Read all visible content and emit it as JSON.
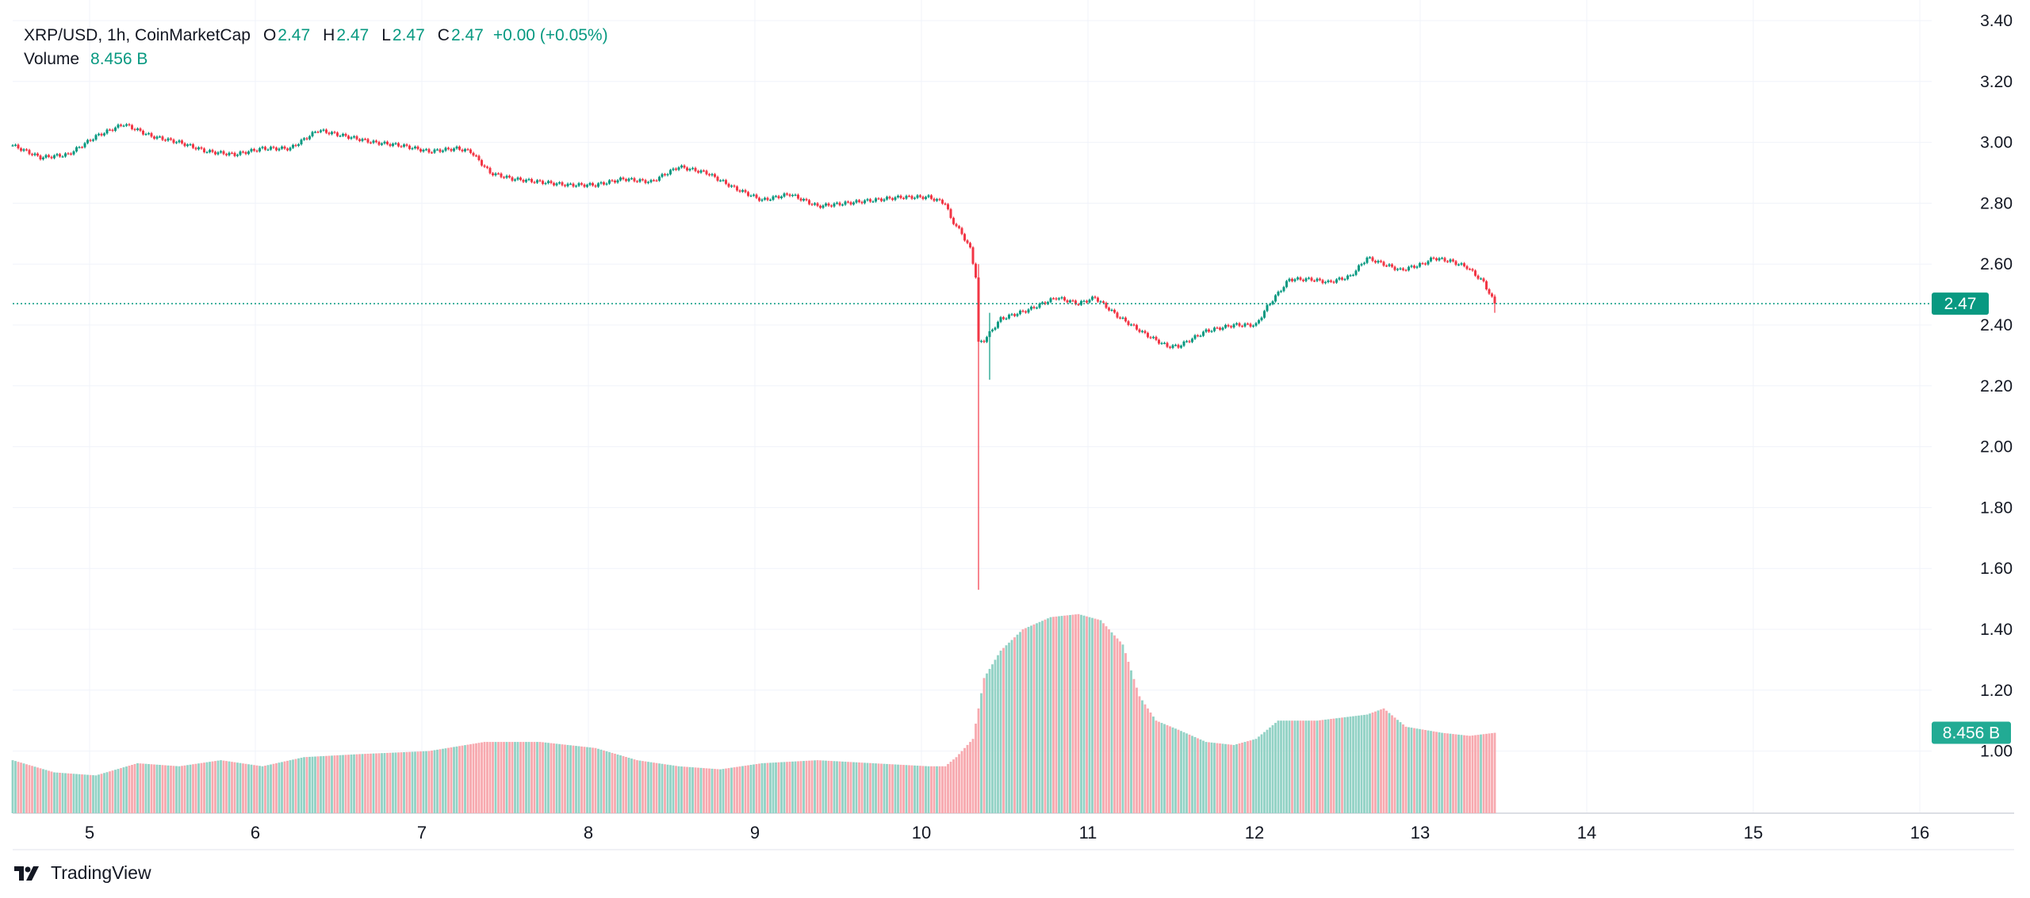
{
  "header": {
    "symbol": "XRP/USD, 1h, CoinMarketCap",
    "open_label": "O",
    "open": "2.47",
    "high_label": "H",
    "high": "2.47",
    "low_label": "L",
    "low": "2.47",
    "close_label": "C",
    "close": "2.47",
    "change": "+0.00 (+0.05%)",
    "volume_label": "Volume",
    "volume_value": "8.456 B"
  },
  "brand": {
    "name": "TradingView"
  },
  "colors": {
    "up": "#089981",
    "down": "#F23645",
    "up_volume": "#92D2C5",
    "down_volume": "#F7A9AF",
    "grid": "#F0F3FA"
  },
  "chart_data": {
    "type": "candlestick",
    "title": "XRP/USD, 1h, CoinMarketCap",
    "price_axis": {
      "ticks": [
        "3.40",
        "3.20",
        "3.00",
        "2.80",
        "2.60",
        "2.40",
        "2.20",
        "2.00",
        "1.80",
        "1.60",
        "1.40",
        "1.20",
        "1.00"
      ],
      "range": [
        0.8,
        3.42
      ]
    },
    "time_axis": {
      "ticks": [
        "5",
        "6",
        "7",
        "8",
        "9",
        "10",
        "11",
        "12",
        "13",
        "14",
        "15",
        "16"
      ]
    },
    "last_price_label": "2.47",
    "last_price": 2.47,
    "volume_label": "8.456 B",
    "price_keypoints": [
      [
        0,
        2.99
      ],
      [
        10,
        2.95
      ],
      [
        20,
        2.96
      ],
      [
        30,
        3.02
      ],
      [
        40,
        3.06
      ],
      [
        50,
        3.02
      ],
      [
        60,
        3.0
      ],
      [
        70,
        2.97
      ],
      [
        80,
        2.96
      ],
      [
        90,
        2.98
      ],
      [
        100,
        2.98
      ],
      [
        110,
        3.04
      ],
      [
        120,
        3.02
      ],
      [
        130,
        3.0
      ],
      [
        140,
        2.99
      ],
      [
        150,
        2.97
      ],
      [
        160,
        2.98
      ],
      [
        165,
        2.97
      ],
      [
        172,
        2.9
      ],
      [
        180,
        2.88
      ],
      [
        190,
        2.87
      ],
      [
        200,
        2.86
      ],
      [
        210,
        2.86
      ],
      [
        220,
        2.88
      ],
      [
        230,
        2.87
      ],
      [
        240,
        2.92
      ],
      [
        250,
        2.9
      ],
      [
        260,
        2.85
      ],
      [
        270,
        2.81
      ],
      [
        280,
        2.83
      ],
      [
        290,
        2.79
      ],
      [
        300,
        2.8
      ],
      [
        310,
        2.81
      ],
      [
        320,
        2.82
      ],
      [
        330,
        2.82
      ],
      [
        336,
        2.8
      ],
      [
        338,
        2.75
      ],
      [
        342,
        2.7
      ],
      [
        345,
        2.65
      ],
      [
        347,
        2.56
      ],
      [
        348,
        2.34
      ],
      [
        350,
        2.35
      ],
      [
        356,
        2.42
      ],
      [
        366,
        2.45
      ],
      [
        376,
        2.49
      ],
      [
        384,
        2.47
      ],
      [
        390,
        2.49
      ],
      [
        398,
        2.43
      ],
      [
        408,
        2.37
      ],
      [
        416,
        2.33
      ],
      [
        420,
        2.33
      ],
      [
        430,
        2.38
      ],
      [
        440,
        2.4
      ],
      [
        448,
        2.4
      ],
      [
        452,
        2.46
      ],
      [
        460,
        2.55
      ],
      [
        468,
        2.55
      ],
      [
        474,
        2.54
      ],
      [
        482,
        2.56
      ],
      [
        488,
        2.62
      ],
      [
        494,
        2.6
      ],
      [
        500,
        2.58
      ],
      [
        508,
        2.6
      ],
      [
        512,
        2.62
      ],
      [
        518,
        2.61
      ],
      [
        524,
        2.59
      ],
      [
        530,
        2.54
      ],
      [
        534,
        2.47
      ]
    ],
    "volume_keypoints": [
      [
        0,
        0.97
      ],
      [
        15,
        0.93
      ],
      [
        30,
        0.92
      ],
      [
        45,
        0.96
      ],
      [
        60,
        0.95
      ],
      [
        75,
        0.97
      ],
      [
        90,
        0.95
      ],
      [
        105,
        0.98
      ],
      [
        125,
        0.99
      ],
      [
        150,
        1.0
      ],
      [
        170,
        1.03
      ],
      [
        190,
        1.03
      ],
      [
        210,
        1.01
      ],
      [
        225,
        0.97
      ],
      [
        240,
        0.95
      ],
      [
        255,
        0.94
      ],
      [
        270,
        0.96
      ],
      [
        290,
        0.97
      ],
      [
        310,
        0.96
      ],
      [
        330,
        0.95
      ],
      [
        336,
        0.95
      ],
      [
        340,
        0.98
      ],
      [
        346,
        1.04
      ],
      [
        350,
        1.24
      ],
      [
        356,
        1.33
      ],
      [
        364,
        1.4
      ],
      [
        374,
        1.44
      ],
      [
        384,
        1.45
      ],
      [
        392,
        1.43
      ],
      [
        400,
        1.35
      ],
      [
        406,
        1.18
      ],
      [
        412,
        1.1
      ],
      [
        420,
        1.07
      ],
      [
        430,
        1.03
      ],
      [
        440,
        1.02
      ],
      [
        448,
        1.04
      ],
      [
        456,
        1.1
      ],
      [
        470,
        1.1
      ],
      [
        488,
        1.12
      ],
      [
        494,
        1.14
      ],
      [
        502,
        1.08
      ],
      [
        515,
        1.06
      ],
      [
        525,
        1.05
      ],
      [
        534,
        1.06
      ]
    ],
    "wicks": [
      {
        "index": 348,
        "low": 1.53,
        "high": 2.6
      },
      {
        "index": 352,
        "low": 2.22,
        "high": 2.44
      },
      {
        "index": 534,
        "low": 2.44,
        "high": 2.5
      }
    ]
  }
}
